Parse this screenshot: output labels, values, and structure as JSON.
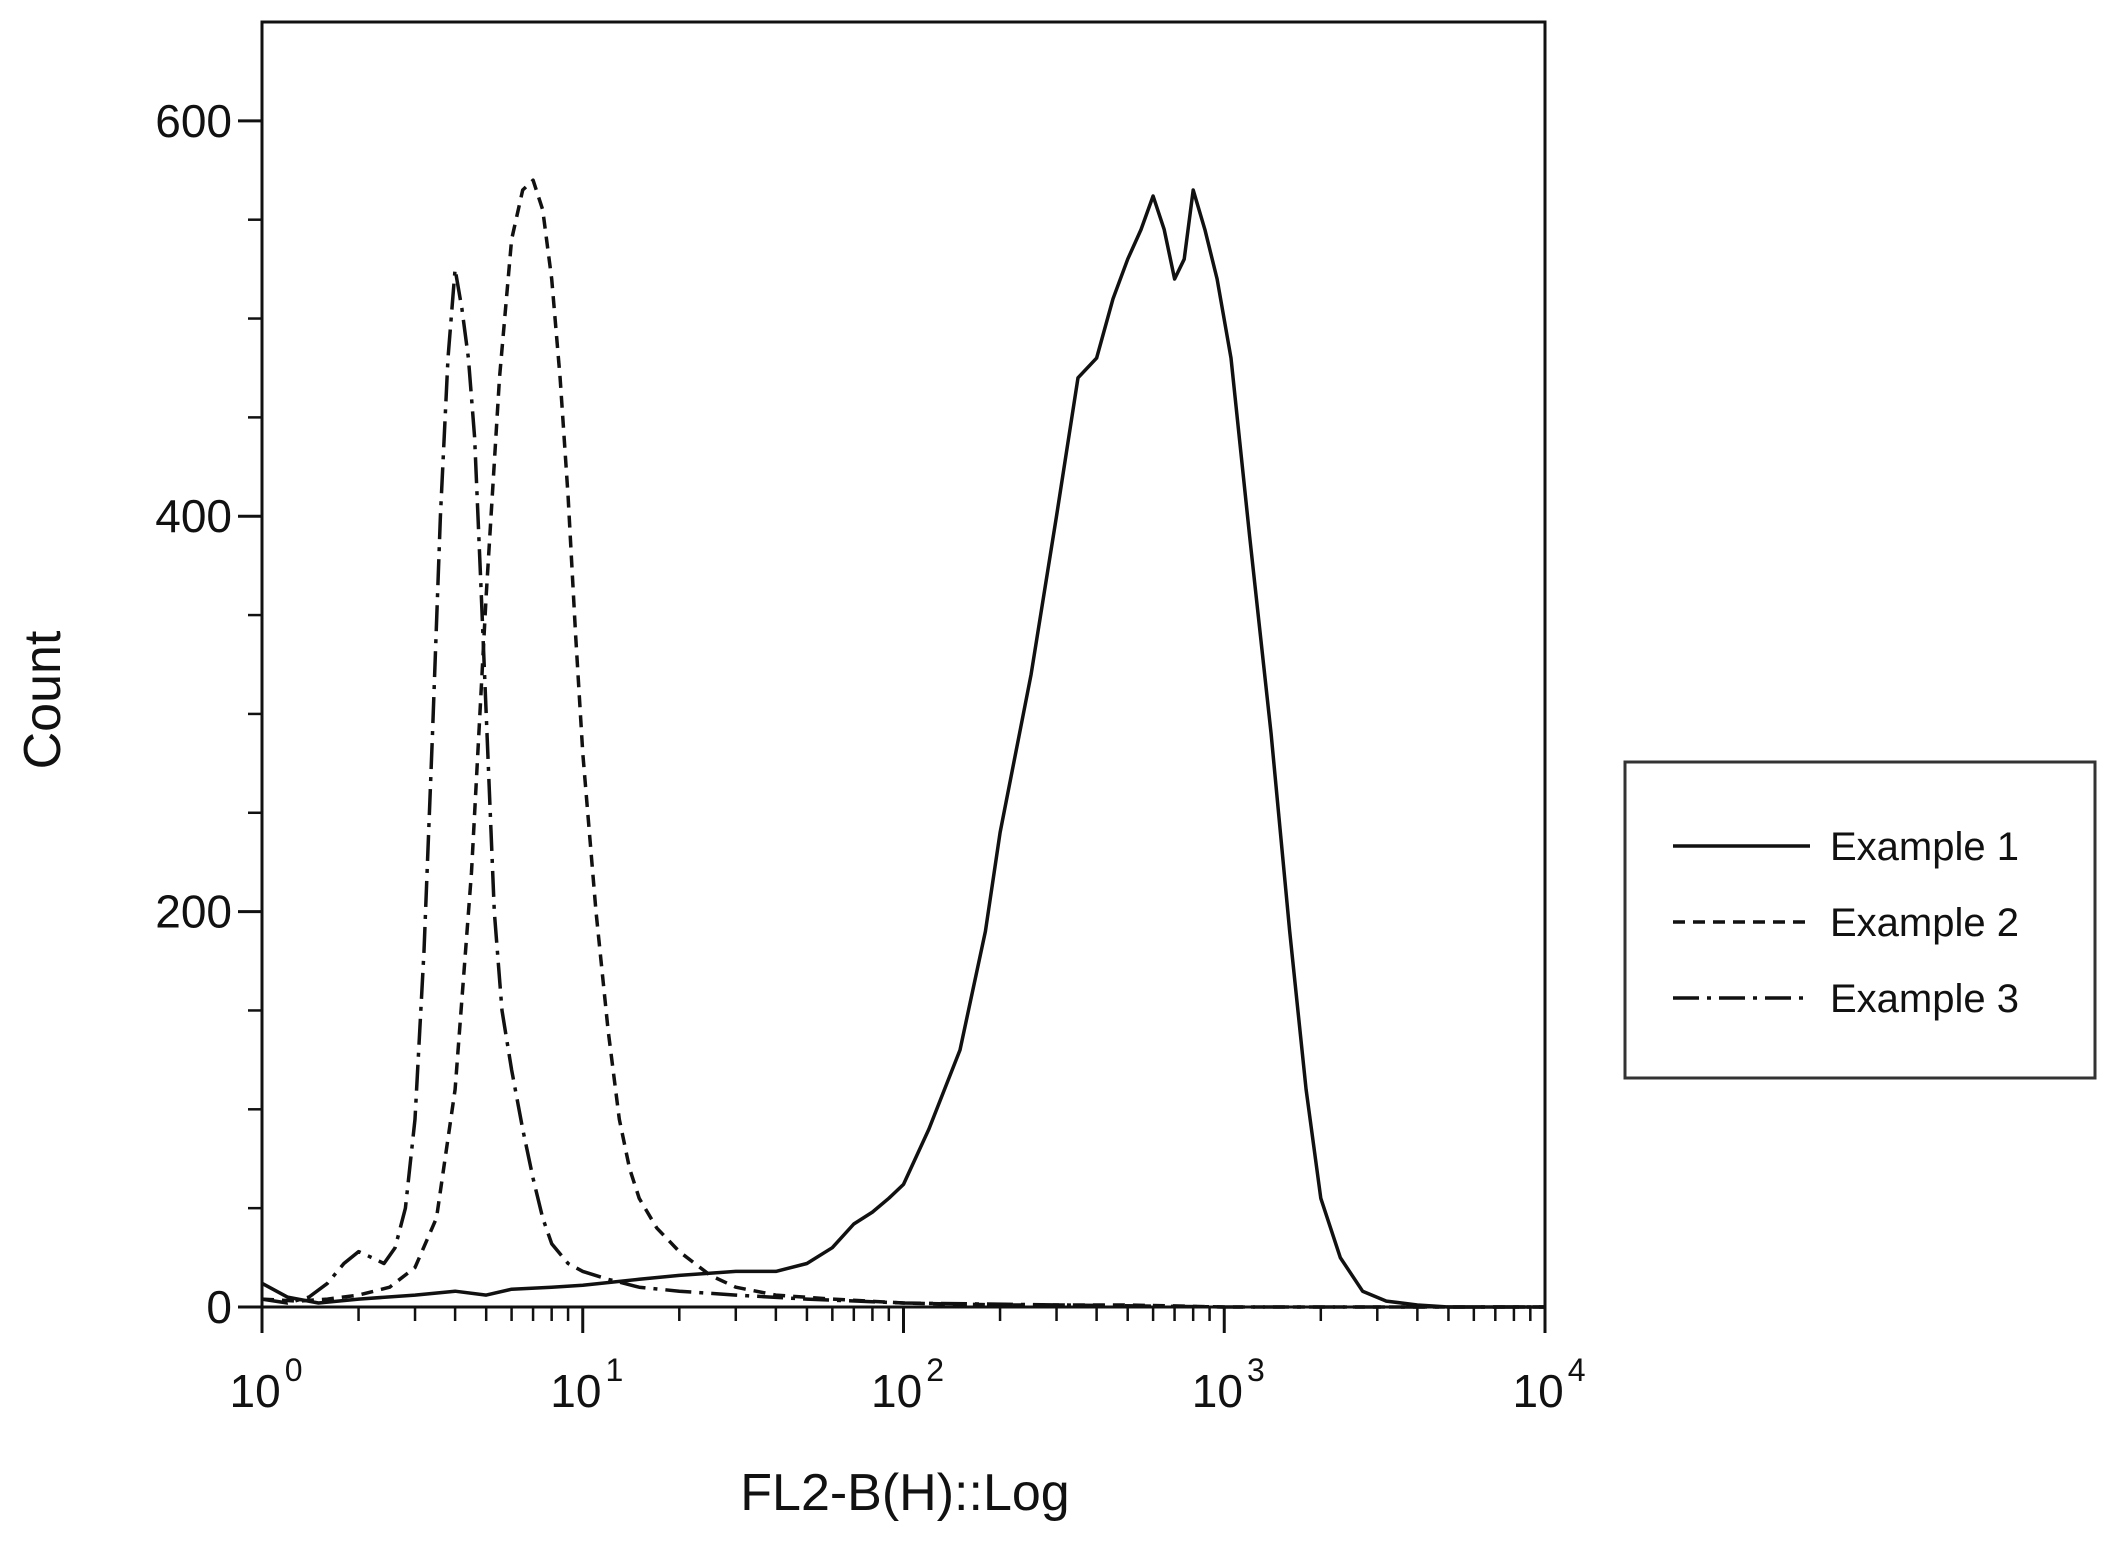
{
  "chart_data": {
    "type": "line",
    "title": "",
    "xlabel": "FL2-B(H)::Log",
    "ylabel": "Count",
    "x_scale": "log",
    "xlim": [
      1,
      10000
    ],
    "ylim": [
      0,
      650
    ],
    "x_ticks": [
      {
        "value": 1,
        "base": "10",
        "exp": "0"
      },
      {
        "value": 10,
        "base": "10",
        "exp": "1"
      },
      {
        "value": 100,
        "base": "10",
        "exp": "2"
      },
      {
        "value": 1000,
        "base": "10",
        "exp": "3"
      },
      {
        "value": 10000,
        "base": "10",
        "exp": "4"
      }
    ],
    "y_ticks": [
      {
        "value": 0,
        "label": "0"
      },
      {
        "value": 200,
        "label": "200"
      },
      {
        "value": 400,
        "label": "400"
      },
      {
        "value": 600,
        "label": "600"
      }
    ],
    "y_minor_ticks": [
      50,
      100,
      150,
      250,
      300,
      350,
      450,
      500,
      550
    ],
    "grid": false,
    "legend_position": "right",
    "series": [
      {
        "name": "Example 1",
        "style": "solid",
        "color": "#111111",
        "x": [
          1.0,
          1.2,
          1.5,
          2.0,
          3.0,
          4.0,
          5.0,
          6.0,
          8.0,
          10.0,
          15.0,
          20.0,
          30.0,
          40.0,
          50.0,
          60.0,
          70.0,
          80.0,
          90.0,
          100.0,
          120.0,
          150.0,
          180.0,
          200.0,
          250.0,
          300.0,
          350.0,
          400.0,
          450.0,
          500.0,
          550.0,
          600.0,
          650.0,
          700.0,
          750.0,
          800.0,
          870.0,
          950.0,
          1050.0,
          1200.0,
          1400.0,
          1600.0,
          1800.0,
          2000.0,
          2300.0,
          2700.0,
          3200.0,
          4000.0,
          5000.0,
          7000.0,
          10000.0
        ],
        "y": [
          12,
          5,
          2,
          4,
          6,
          8,
          6,
          9,
          10,
          11,
          14,
          16,
          18,
          18,
          22,
          30,
          42,
          48,
          55,
          62,
          90,
          130,
          190,
          240,
          320,
          400,
          470,
          480,
          510,
          530,
          545,
          562,
          545,
          520,
          530,
          565,
          545,
          520,
          480,
          390,
          290,
          190,
          110,
          55,
          25,
          8,
          3,
          1,
          0,
          0,
          0
        ]
      },
      {
        "name": "Example 2",
        "style": "dashed",
        "color": "#111111",
        "x": [
          1.0,
          1.3,
          1.6,
          2.0,
          2.5,
          3.0,
          3.5,
          4.0,
          4.5,
          5.0,
          5.5,
          6.0,
          6.5,
          7.0,
          7.5,
          8.0,
          8.5,
          9.0,
          9.5,
          10.0,
          11.0,
          12.0,
          13.0,
          14.0,
          15.0,
          17.0,
          20.0,
          25.0,
          30.0,
          40.0,
          60.0,
          100.0,
          200.0,
          500.0,
          1000.0,
          10000.0
        ],
        "y": [
          4,
          3,
          4,
          6,
          10,
          20,
          45,
          110,
          220,
          360,
          470,
          540,
          565,
          570,
          555,
          520,
          470,
          410,
          340,
          280,
          200,
          140,
          95,
          70,
          55,
          40,
          28,
          16,
          10,
          6,
          4,
          2,
          1,
          1,
          0,
          0
        ]
      },
      {
        "name": "Example 3",
        "style": "dash-dot",
        "color": "#111111",
        "x": [
          1.0,
          1.2,
          1.4,
          1.6,
          1.8,
          2.0,
          2.2,
          2.4,
          2.6,
          2.8,
          3.0,
          3.2,
          3.4,
          3.6,
          3.8,
          4.0,
          4.2,
          4.4,
          4.6,
          4.8,
          5.0,
          5.3,
          5.6,
          6.0,
          6.5,
          7.0,
          7.5,
          8.0,
          9.0,
          10.0,
          12.0,
          15.0,
          20.0,
          30.0,
          50.0,
          100.0,
          1000.0,
          10000.0
        ],
        "y": [
          4,
          2,
          5,
          12,
          22,
          28,
          25,
          22,
          30,
          50,
          95,
          180,
          290,
          400,
          480,
          525,
          505,
          480,
          440,
          370,
          300,
          200,
          150,
          120,
          90,
          65,
          45,
          32,
          22,
          18,
          14,
          10,
          8,
          6,
          4,
          2,
          0,
          0
        ]
      }
    ]
  }
}
